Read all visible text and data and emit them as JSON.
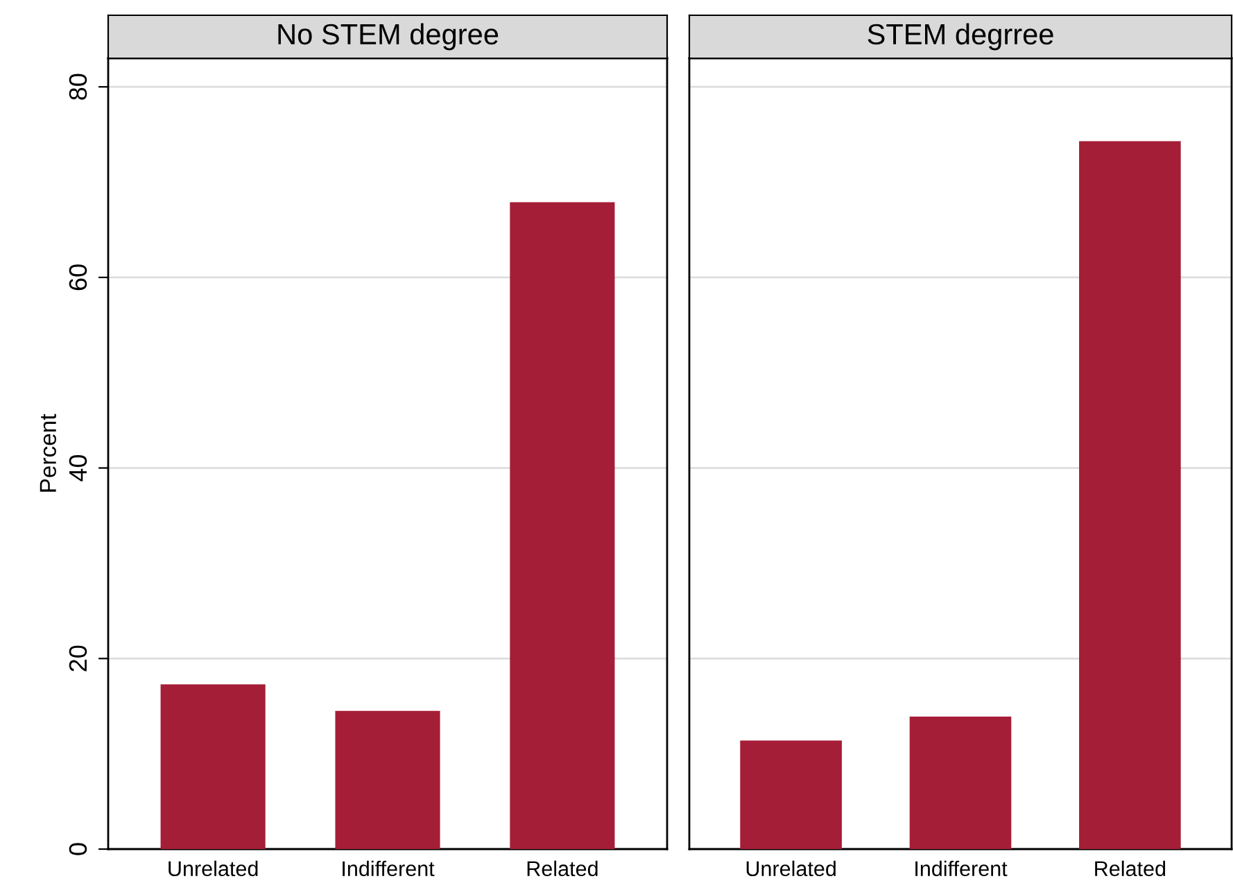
{
  "chart_data": [
    {
      "type": "bar",
      "title": "No STEM degree",
      "ylabel": "Percent",
      "categories": [
        "Unrelated",
        "Indifferent",
        "Related"
      ],
      "values": [
        17.3,
        14.5,
        67.9
      ],
      "color": "#a51e37",
      "ylim": [
        0,
        83
      ],
      "yticks": [
        0,
        20,
        40,
        60,
        80
      ],
      "grid": "y"
    },
    {
      "type": "bar",
      "title": "STEM degrree",
      "categories": [
        "Unrelated",
        "Indifferent",
        "Related"
      ],
      "values": [
        11.4,
        13.9,
        74.3
      ],
      "color": "#a51e37",
      "ylim": [
        0,
        83
      ],
      "yticks": [
        0,
        20,
        40,
        60,
        80
      ],
      "grid": "y",
      "tick_labels": "x"
    }
  ]
}
